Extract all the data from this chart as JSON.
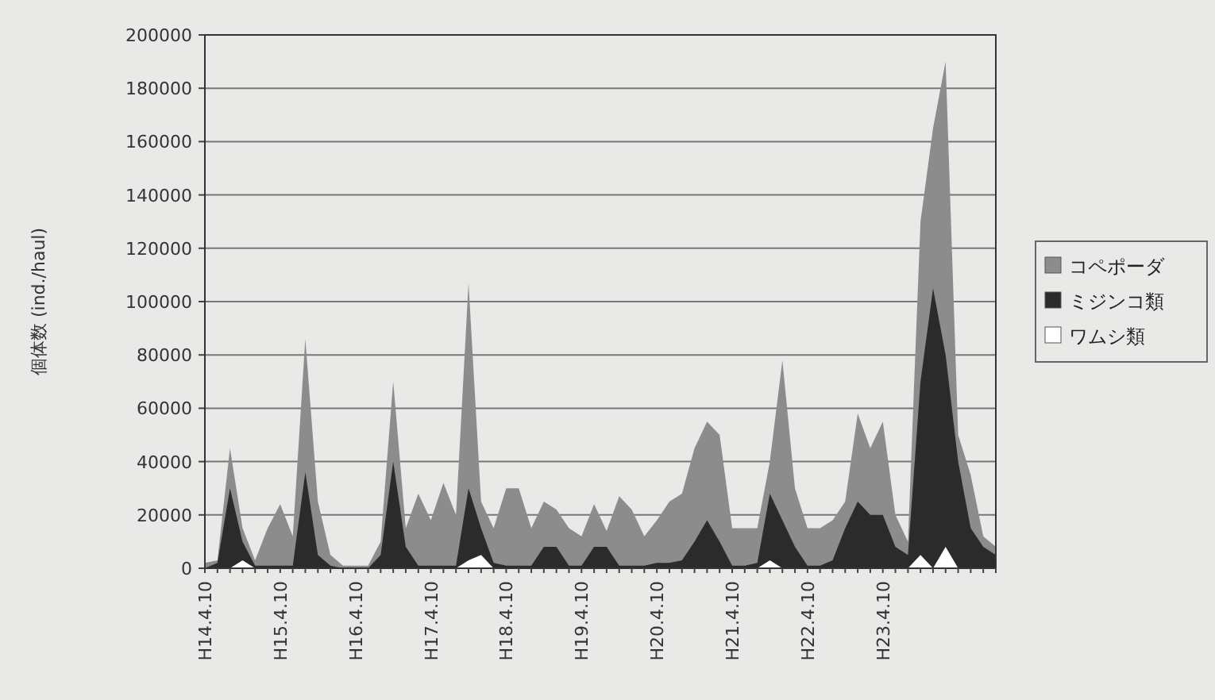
{
  "chart_data": {
    "type": "area",
    "ylabel": "個体数 (ind./haul)",
    "categories": [
      "H14.4.10",
      null,
      null,
      null,
      null,
      null,
      "H15.4.10",
      null,
      null,
      null,
      null,
      null,
      "H16.4.10",
      null,
      null,
      null,
      null,
      null,
      "H17.4.10",
      null,
      null,
      null,
      null,
      null,
      "H18.4.10",
      null,
      null,
      null,
      null,
      null,
      "H19.4.10",
      null,
      null,
      null,
      null,
      null,
      "H20.4.10",
      null,
      null,
      null,
      null,
      null,
      "H21.4.10",
      null,
      null,
      null,
      null,
      null,
      "H22.4.10",
      null,
      null,
      null,
      null,
      null,
      "H23.4.10",
      null,
      null,
      null,
      null,
      null,
      null,
      null,
      null,
      null
    ],
    "series": [
      {
        "name": "コペポーダ",
        "color": "#8c8c8c",
        "values": [
          2000,
          3000,
          45000,
          15000,
          3000,
          15000,
          24000,
          12000,
          86000,
          25000,
          5000,
          1000,
          1000,
          1000,
          10000,
          70000,
          15000,
          28000,
          18000,
          32000,
          20000,
          107000,
          25000,
          15000,
          30000,
          30000,
          15000,
          25000,
          22000,
          15000,
          12000,
          24000,
          14000,
          27000,
          22000,
          12000,
          18000,
          25000,
          28000,
          45000,
          55000,
          50000,
          15000,
          15000,
          15000,
          40000,
          78000,
          30000,
          15000,
          15000,
          18000,
          25000,
          58000,
          45000,
          55000,
          20000,
          10000,
          130000,
          165000,
          190000,
          50000,
          35000,
          12000,
          8000
        ]
      },
      {
        "name": "ミジンコ類",
        "color": "#2b2b2b",
        "values": [
          0,
          2000,
          30000,
          10000,
          1000,
          1000,
          1000,
          1000,
          36000,
          5000,
          1000,
          0,
          0,
          0,
          5000,
          40000,
          8000,
          1000,
          1000,
          1000,
          1000,
          30000,
          15000,
          2000,
          1000,
          1000,
          1000,
          8000,
          8000,
          1000,
          1000,
          8000,
          8000,
          1000,
          1000,
          1000,
          2000,
          2000,
          3000,
          10000,
          18000,
          10000,
          1000,
          1000,
          2000,
          28000,
          18000,
          8000,
          1000,
          1000,
          3000,
          15000,
          25000,
          20000,
          20000,
          8000,
          5000,
          70000,
          105000,
          80000,
          40000,
          15000,
          8000,
          5000
        ]
      },
      {
        "name": "ワムシ類",
        "color": "#ffffff",
        "values": [
          0,
          0,
          0,
          3000,
          0,
          0,
          0,
          0,
          0,
          0,
          0,
          0,
          0,
          0,
          0,
          0,
          0,
          0,
          0,
          0,
          0,
          3000,
          5000,
          0,
          0,
          0,
          0,
          0,
          0,
          0,
          0,
          0,
          0,
          0,
          0,
          0,
          0,
          0,
          0,
          0,
          0,
          0,
          0,
          0,
          0,
          3000,
          0,
          0,
          0,
          0,
          0,
          0,
          0,
          0,
          0,
          0,
          0,
          5000,
          0,
          8000,
          0,
          0,
          0,
          0
        ]
      }
    ],
    "ylim": [
      0,
      200000
    ],
    "yticks": [
      0,
      20000,
      40000,
      60000,
      80000,
      100000,
      120000,
      140000,
      160000,
      180000,
      200000
    ],
    "grid": "y",
    "legend": "right"
  }
}
